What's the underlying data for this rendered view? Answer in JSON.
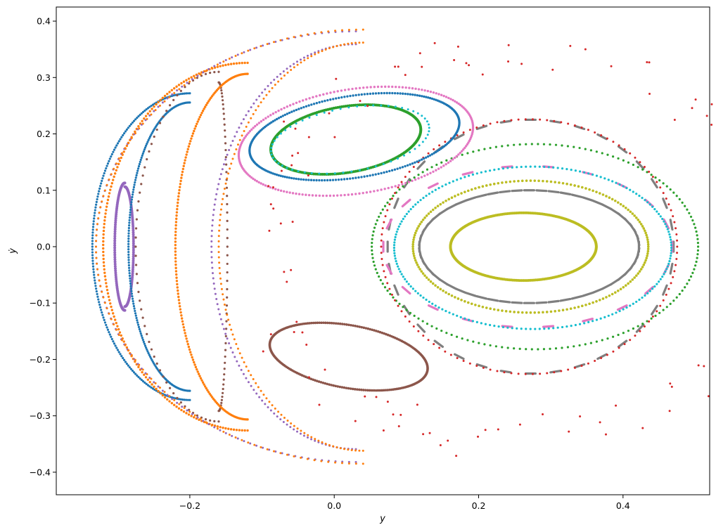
{
  "chart_data": {
    "type": "scatter",
    "title": "",
    "xlabel": "y",
    "ylabel": "ẏ",
    "xlim": [
      -0.385,
      0.52
    ],
    "ylim": [
      -0.44,
      0.425
    ],
    "xticks": [
      -0.2,
      0.0,
      0.2,
      0.4
    ],
    "xtick_labels": [
      "−0.2",
      "0.0",
      "0.2",
      "0.4"
    ],
    "yticks": [
      -0.4,
      -0.3,
      -0.2,
      -0.1,
      0.0,
      0.1,
      0.2,
      0.3,
      0.4
    ],
    "ytick_labels": [
      "−0.4",
      "−0.3",
      "−0.2",
      "−0.1",
      "0.0",
      "0.1",
      "0.2",
      "0.3",
      "0.4"
    ],
    "grid": false,
    "legend": "none",
    "palette": [
      "#1f77b4",
      "#ff7f0e",
      "#2ca02c",
      "#d62728",
      "#9467bd",
      "#8c564b",
      "#e377c2",
      "#7f7f7f",
      "#bcbd22",
      "#17becf"
    ],
    "series": [
      {
        "color": "#bcbd22",
        "shape": "ellipse",
        "cx": 0.262,
        "cy": 0.0,
        "rx": 0.101,
        "ry": 0.06,
        "n": 260,
        "size": 2.0
      },
      {
        "color": "#7f7f7f",
        "shape": "ellipse",
        "cx": 0.272,
        "cy": 0.0,
        "rx": 0.198,
        "ry": 0.225,
        "n": 36,
        "size": 2.6,
        "dash": true
      },
      {
        "color": "#7f7f7f",
        "shape": "ellipse",
        "cx": 0.27,
        "cy": 0.0,
        "rx": 0.152,
        "ry": 0.1,
        "n": 56,
        "size": 2.6,
        "dash": true
      },
      {
        "color": "#bcbd22",
        "shape": "ellipse",
        "cx": 0.272,
        "cy": 0.0,
        "rx": 0.163,
        "ry": 0.117,
        "n": 180,
        "size": 1.8
      },
      {
        "color": "#e377c2",
        "shape": "ellipse",
        "cx": 0.268,
        "cy": 0.0,
        "rx": 0.2,
        "ry": 0.143,
        "n": 22,
        "size": 2.6,
        "dash": true
      },
      {
        "color": "#17becf",
        "shape": "ellipse",
        "cx": 0.275,
        "cy": -0.002,
        "rx": 0.192,
        "ry": 0.144,
        "n": 190,
        "size": 1.6
      },
      {
        "color": "#2ca02c",
        "shape": "ellipse",
        "cx": 0.278,
        "cy": 0.0,
        "rx": 0.226,
        "ry": 0.182,
        "n": 170,
        "size": 1.6
      },
      {
        "color": "#d62728",
        "shape": "ellipse",
        "cx": 0.27,
        "cy": 0.0,
        "rx": 0.205,
        "ry": 0.226,
        "n": 130,
        "size": 1.5
      },
      {
        "color": "#1f77b4",
        "shape": "tilted",
        "cx": 0.028,
        "cy": 0.195,
        "rx": 0.148,
        "ry": 0.072,
        "tilt": 0.22,
        "n": 230,
        "size": 1.7
      },
      {
        "color": "#e377c2",
        "shape": "tilted",
        "cx": 0.03,
        "cy": 0.187,
        "rx": 0.165,
        "ry": 0.092,
        "tilt": 0.22,
        "n": 200,
        "size": 1.7
      },
      {
        "color": "#2ca02c",
        "shape": "tilted",
        "cx": 0.016,
        "cy": 0.19,
        "rx": 0.106,
        "ry": 0.058,
        "tilt": 0.24,
        "n": 240,
        "size": 2.0
      },
      {
        "color": "#17becf",
        "shape": "tilted",
        "cx": 0.022,
        "cy": 0.19,
        "rx": 0.112,
        "ry": 0.056,
        "tilt": 0.24,
        "n": 60,
        "size": 1.5
      },
      {
        "color": "#8c564b",
        "shape": "tilted",
        "cx": 0.02,
        "cy": -0.195,
        "rx": 0.112,
        "ry": 0.055,
        "tilt": -0.25,
        "n": 230,
        "size": 1.8
      },
      {
        "color": "#9467bd",
        "shape": "crescent",
        "cx": -0.29,
        "cy": 0.0,
        "rx_out": 0.014,
        "rx_in": 0.0,
        "ry": 0.113,
        "n": 170,
        "size": 2.0
      },
      {
        "color": "#1f77b4",
        "shape": "crescent",
        "cx": -0.2,
        "cy": 0.0,
        "rx_out": 0.135,
        "rx_in": 0.085,
        "ry": 0.272,
        "n": 340,
        "size": 1.6
      },
      {
        "color": "#8c564b",
        "shape": "crescent",
        "cx": -0.16,
        "cy": 0.0,
        "rx_out": 0.115,
        "rx_in": 0.0,
        "ry": 0.31,
        "n": 120,
        "size": 1.6
      },
      {
        "color": "#ff7f0e",
        "shape": "crescent",
        "cx": -0.12,
        "cy": 0.0,
        "rx_out": 0.2,
        "rx_in": 0.1,
        "ry": 0.326,
        "n": 330,
        "size": 1.7
      },
      {
        "color": "#9467bd",
        "shape": "crescent",
        "cx": 0.03,
        "cy": 0.0,
        "rx_out": 0.36,
        "rx_in": 0.2,
        "ry": 0.382,
        "n": 240,
        "size": 1.5
      },
      {
        "color": "#ff7f0e",
        "shape": "crescent",
        "cx": 0.04,
        "cy": 0.0,
        "rx_out": 0.37,
        "rx_in": 0.2,
        "ry": 0.385,
        "n": 240,
        "size": 1.5
      },
      {
        "color": "#d62728",
        "shape": "chaotic",
        "n": 110,
        "size": 1.5
      }
    ]
  }
}
